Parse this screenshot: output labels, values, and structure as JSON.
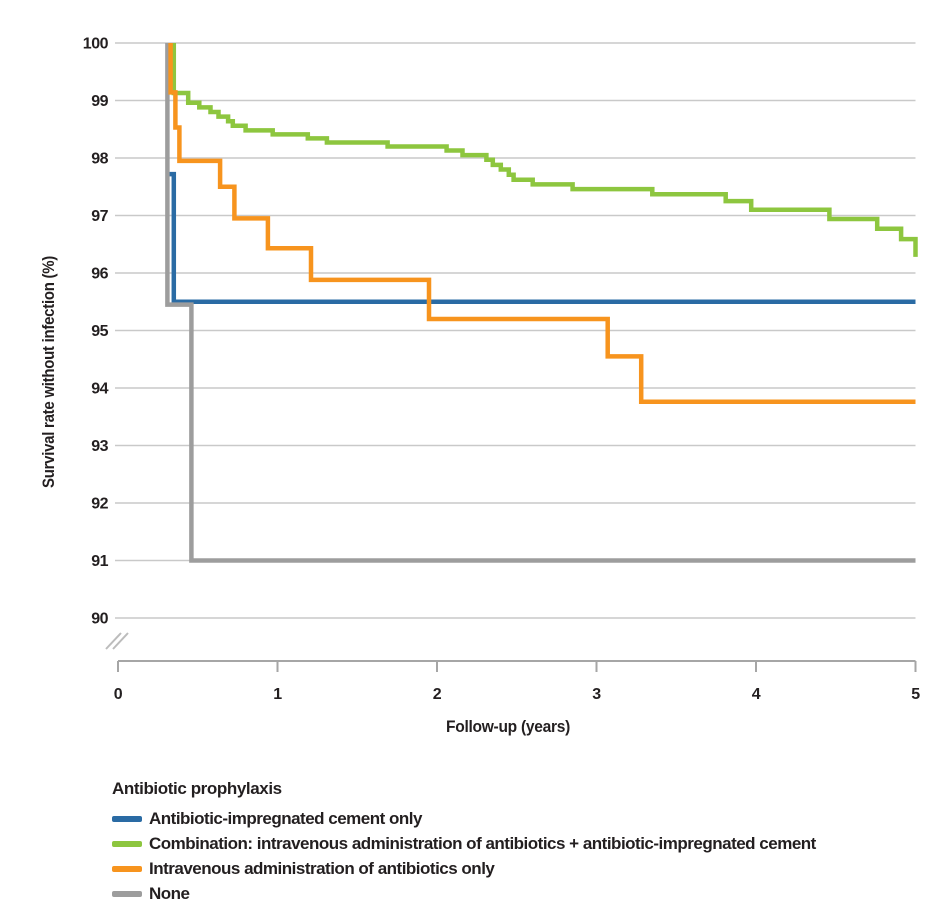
{
  "colors": {
    "grid": "#c9c9c9",
    "axis": "#a6a6a6",
    "break_mark": "#bcbcbc",
    "text": "#231f20",
    "background": "#ffffff"
  },
  "chart_data": {
    "type": "line",
    "subtype": "kaplan-meier-step",
    "title": "",
    "xlabel": "Follow-up (years)",
    "ylabel": "Survival rate without infection (%)",
    "xlim": [
      0,
      5
    ],
    "ylim": [
      90,
      100
    ],
    "xticks": [
      0,
      1,
      2,
      3,
      4,
      5
    ],
    "yticks": [
      90,
      91,
      92,
      93,
      94,
      95,
      96,
      97,
      98,
      99,
      100
    ],
    "grid": "horizontal",
    "y_axis_break": true,
    "legend_title": "Antibiotic prophylaxis",
    "legend_position": "bottom",
    "series": [
      {
        "name": "Antibiotic-impregnated cement only",
        "color": "#2a6ba4",
        "points": [
          [
            0.31,
            97.72
          ],
          [
            0.35,
            95.5
          ]
        ]
      },
      {
        "name": "Combination: intravenous administration of antibiotics + antibiotic-impregnated cement",
        "color": "#8dc63f",
        "points": [
          [
            0.35,
            100
          ],
          [
            0.35,
            99.13
          ],
          [
            0.44,
            98.96
          ],
          [
            0.51,
            98.88
          ],
          [
            0.58,
            98.8
          ],
          [
            0.63,
            98.72
          ],
          [
            0.69,
            98.64
          ],
          [
            0.72,
            98.56
          ],
          [
            0.8,
            98.48
          ],
          [
            0.97,
            98.41
          ],
          [
            1.19,
            98.34
          ],
          [
            1.31,
            98.27
          ],
          [
            1.69,
            98.2
          ],
          [
            2.06,
            98.13
          ],
          [
            2.16,
            98.05
          ],
          [
            2.31,
            97.97
          ],
          [
            2.35,
            97.88
          ],
          [
            2.4,
            97.8
          ],
          [
            2.45,
            97.71
          ],
          [
            2.48,
            97.62
          ],
          [
            2.6,
            97.54
          ],
          [
            2.85,
            97.46
          ],
          [
            3.35,
            97.37
          ],
          [
            3.81,
            97.25
          ],
          [
            3.97,
            97.1
          ],
          [
            4.46,
            96.94
          ],
          [
            4.76,
            96.77
          ],
          [
            4.91,
            96.59
          ],
          [
            5.0,
            96.28
          ]
        ]
      },
      {
        "name": "Intravenous administration of antibiotics only",
        "color": "#f7941e",
        "points": [
          [
            0.33,
            100
          ],
          [
            0.33,
            99.14
          ],
          [
            0.36,
            98.53
          ],
          [
            0.385,
            97.95
          ],
          [
            0.64,
            97.5
          ],
          [
            0.73,
            96.95
          ],
          [
            0.94,
            96.43
          ],
          [
            1.21,
            95.88
          ],
          [
            1.95,
            95.2
          ],
          [
            3.07,
            94.55
          ],
          [
            3.28,
            93.76
          ]
        ]
      },
      {
        "name": "None",
        "color": "#9d9d9d",
        "points": [
          [
            0.31,
            100
          ],
          [
            0.31,
            95.45
          ],
          [
            0.46,
            91.0
          ]
        ]
      }
    ]
  }
}
